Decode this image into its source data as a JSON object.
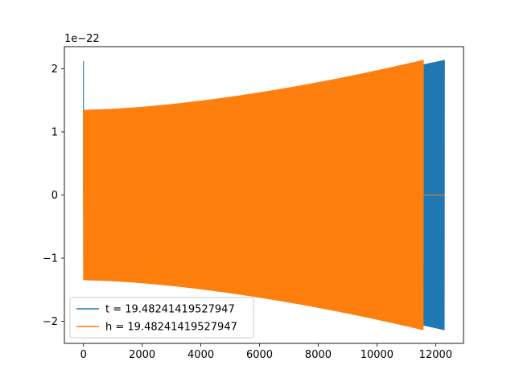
{
  "chart_data": {
    "type": "line",
    "title": "",
    "xlabel": "",
    "ylabel": "",
    "y_offset_text": "1e−22",
    "xlim": [
      -650,
      12950
    ],
    "ylim": [
      -2.35,
      2.35
    ],
    "x_ticks": [
      0,
      2000,
      4000,
      6000,
      8000,
      10000,
      12000
    ],
    "x_tick_labels": [
      "0",
      "2000",
      "4000",
      "6000",
      "8000",
      "10000",
      "12000"
    ],
    "y_ticks": [
      -2,
      -1,
      0,
      1,
      2
    ],
    "y_tick_labels": [
      "−2",
      "−1",
      "0",
      "1",
      "2"
    ],
    "grid": false,
    "legend_position": "lower left",
    "series": [
      {
        "name": "t = 19.48241419527947",
        "color": "#1f77b4",
        "x_start": 0,
        "x_end": 12300,
        "initial_spike": 2.12,
        "envelope_start": 1.35,
        "envelope_end": 2.14,
        "ends_with_zero": false
      },
      {
        "name": "h = 19.48241419527947",
        "color": "#ff7f0e",
        "x_start": 0,
        "x_end": 11580,
        "initial_spike": -0.3,
        "envelope_start": 1.35,
        "envelope_end": 2.14,
        "ends_with_zero": true,
        "zero_tail_end": 12300
      }
    ]
  }
}
